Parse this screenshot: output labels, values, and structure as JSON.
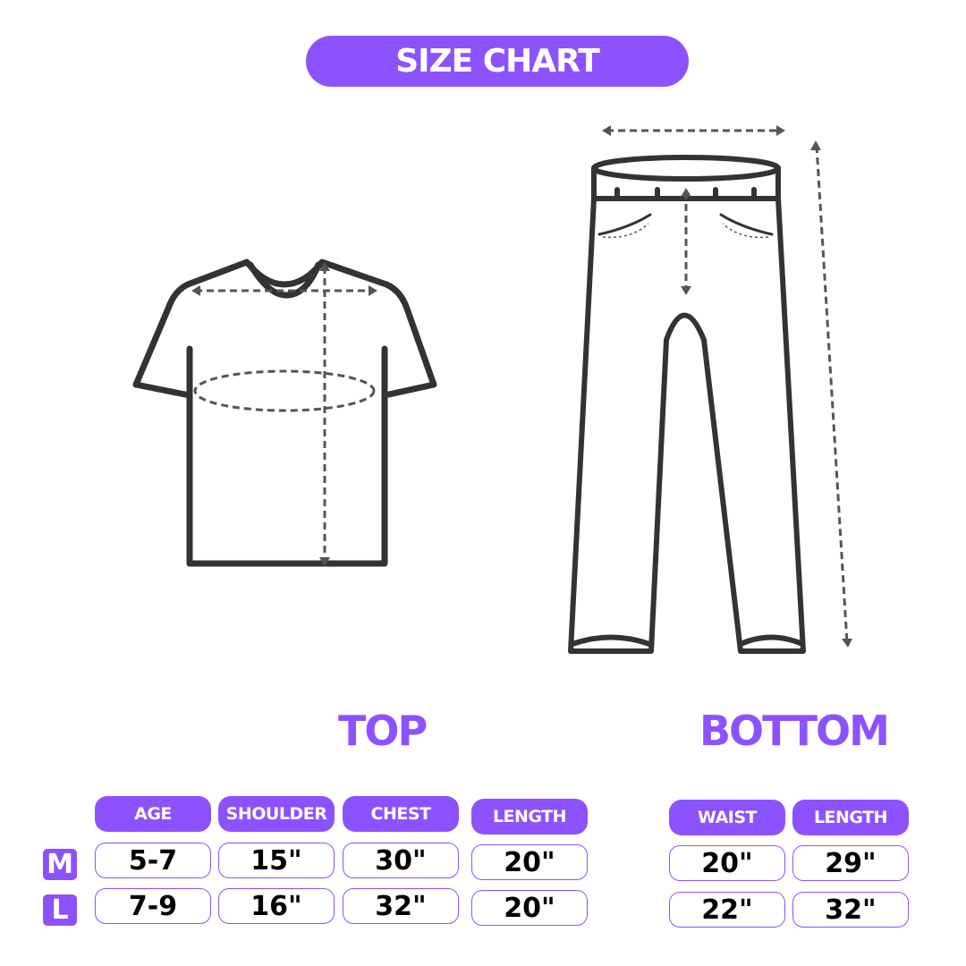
{
  "title": "SIZE CHART",
  "accent_color": "#8c52ff",
  "top": {
    "label": "TOP",
    "headers": [
      "AGE",
      "SHOULDER",
      "CHEST",
      "LENGTH"
    ],
    "rows": [
      {
        "size": "M",
        "values": [
          "5-7",
          "15\"",
          "30\"",
          "20\""
        ]
      },
      {
        "size": "L",
        "values": [
          "7-9",
          "16\"",
          "32\"",
          "20\""
        ]
      }
    ]
  },
  "bottom": {
    "label": "BOTTOM",
    "headers": [
      "WAIST",
      "LENGTH"
    ],
    "rows": [
      {
        "size": "M",
        "values": [
          "20\"",
          "29\""
        ]
      },
      {
        "size": "L",
        "values": [
          "22\"",
          "32\""
        ]
      }
    ]
  },
  "icons": [
    "tshirt-diagram-icon",
    "pants-diagram-icon"
  ]
}
